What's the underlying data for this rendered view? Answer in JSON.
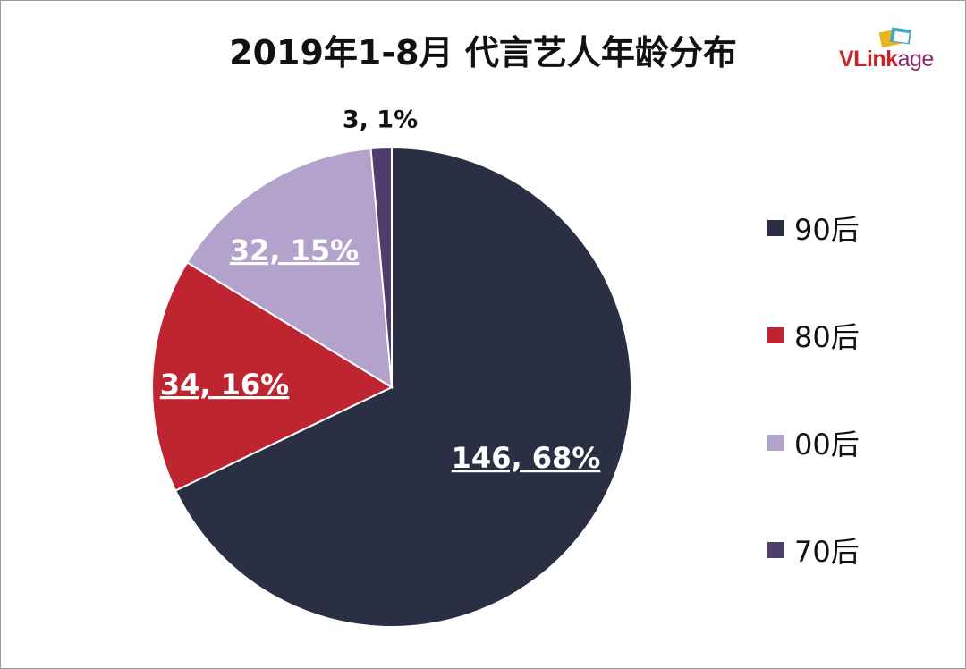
{
  "title": "2019年1-8月 代言艺人年龄分布",
  "logo": {
    "text_main": "VLink",
    "text_tail": "age"
  },
  "colors": {
    "90后": "#2b2f44",
    "80后": "#bf2530",
    "00后": "#b3a2cb",
    "70后": "#4f3d6b"
  },
  "chart_data": {
    "type": "pie",
    "title": "2019年1-8月 代言艺人年龄分布",
    "slices": [
      {
        "name": "90后",
        "value": 146,
        "percent": 68,
        "label": "146, 68%"
      },
      {
        "name": "80后",
        "value": 34,
        "percent": 16,
        "label": "34, 16%"
      },
      {
        "name": "00后",
        "value": 32,
        "percent": 15,
        "label": "32, 15%"
      },
      {
        "name": "70后",
        "value": 3,
        "percent": 1,
        "label": "3, 1%"
      }
    ],
    "legend": {
      "placement": "right",
      "entries": [
        "90后",
        "80后",
        "00后",
        "70后"
      ]
    }
  }
}
